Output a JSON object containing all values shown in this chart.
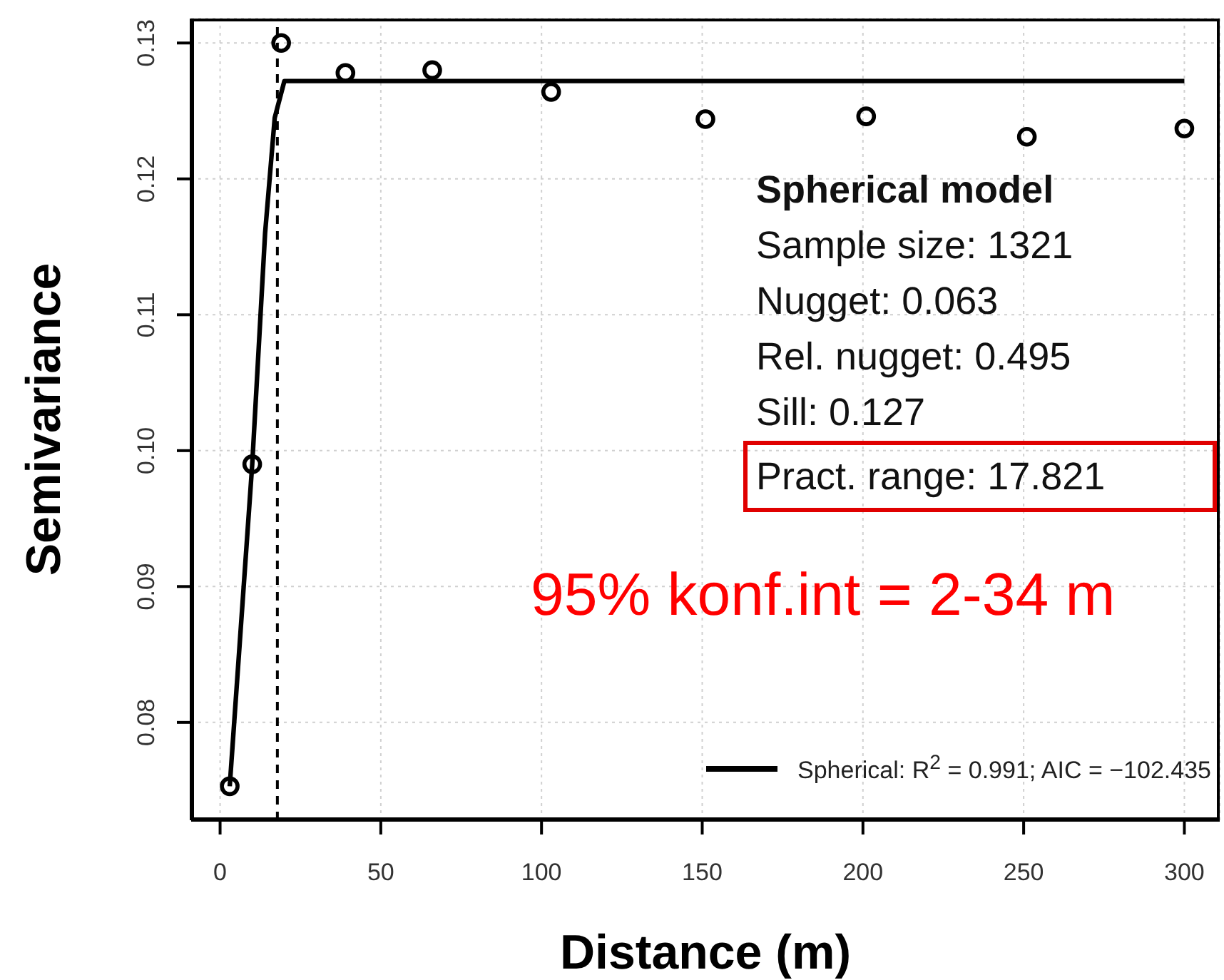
{
  "chart_data": {
    "type": "scatter",
    "xlabel": "Distance (m)",
    "ylabel": "Semivariance",
    "xlim": [
      -9,
      311
    ],
    "xticks": [
      0,
      50,
      100,
      150,
      200,
      250,
      300
    ],
    "ylim": [
      0.0728,
      0.1318
    ],
    "yticks": [
      0.08,
      0.09,
      {
        "value": 0.1,
        "label": "0.10"
      },
      0.11,
      0.12,
      0.13
    ],
    "grid": true,
    "legend": "bottom right",
    "series": [
      {
        "color": "#000000",
        "marker": "circle",
        "x": [
          3,
          10,
          19,
          39,
          66,
          103,
          151,
          201,
          251,
          300
        ],
        "values": [
          0.0753,
          0.099,
          0.13,
          0.1278,
          0.128,
          0.1264,
          0.1244,
          0.1246,
          0.1231,
          0.1237
        ]
      },
      {
        "type": "line",
        "name": "Spherical: R$^{2}$ = 0.991; AIC = −102.435",
        "color": "#000000",
        "marker": "none",
        "line_style": "solid",
        "x": [
          3,
          10,
          14,
          17,
          20,
          300
        ],
        "values": [
          0.0753,
          0.099,
          0.116,
          0.1245,
          0.1272,
          0.1272
        ]
      }
    ],
    "ref_lines": [
      {
        "axis": "x",
        "value": 17.821,
        "color": "#000000",
        "line_style": "dashed"
      }
    ],
    "annotations": [
      "Spherical model",
      "Sample size: 1321",
      "Nugget: 0.063",
      "Rel. nugget: 0.495",
      "Sill: 0.127",
      "Pract. range: 17.821",
      "95% konf.int = 2-34 m"
    ]
  }
}
